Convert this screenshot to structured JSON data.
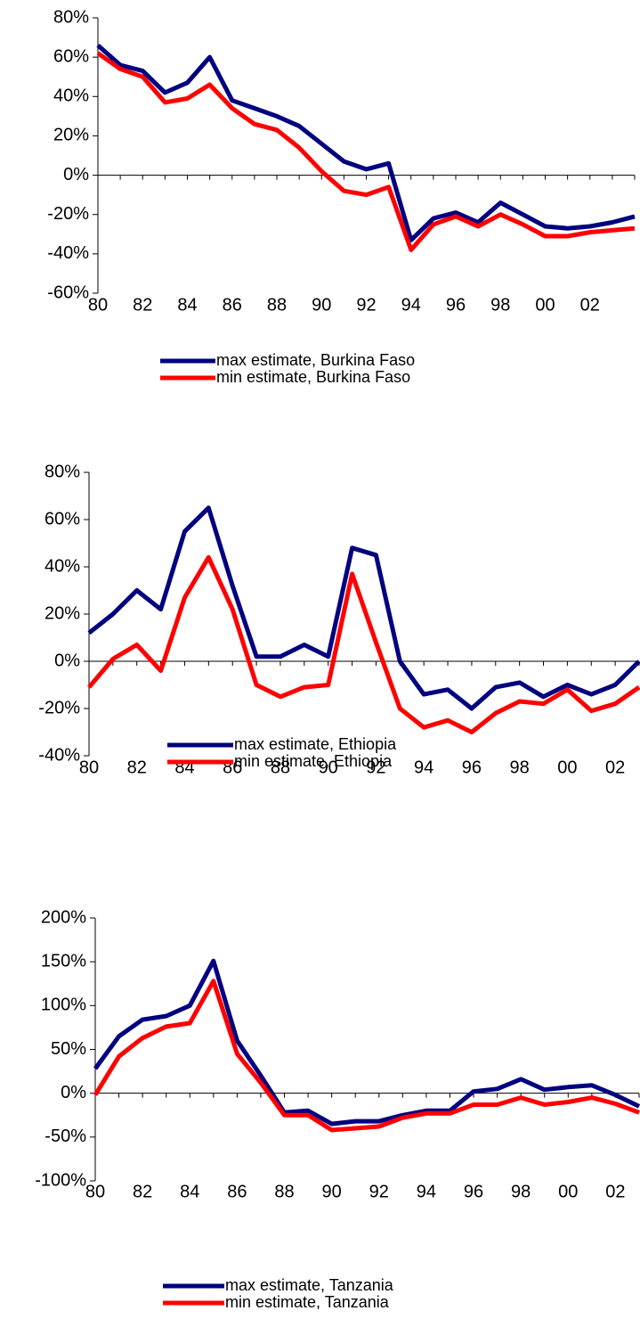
{
  "chart_data": [
    {
      "type": "line",
      "categories": [
        "80",
        null,
        "82",
        null,
        "84",
        null,
        "86",
        null,
        "88",
        null,
        "90",
        null,
        "92",
        null,
        "94",
        null,
        "96",
        null,
        "98",
        null,
        "00",
        null,
        "02",
        null,
        null
      ],
      "series": [
        {
          "name": "max estimate, Burkina Faso",
          "color": "#000080",
          "values": [
            66,
            56,
            53,
            42,
            47,
            60,
            38,
            34,
            30,
            25,
            16,
            7,
            3,
            6,
            -33,
            -22,
            -19,
            -24,
            -14,
            -20,
            -26,
            -27,
            -26,
            -24,
            -21
          ]
        },
        {
          "name": "min estimate, Burkina Faso",
          "color": "#ff0000",
          "values": [
            62,
            54,
            50,
            37,
            39,
            46,
            34,
            26,
            23,
            14,
            2,
            -8,
            -10,
            -6,
            -38,
            -25,
            -21,
            -26,
            -20,
            -25,
            -31,
            -31,
            -29,
            -28,
            -27
          ]
        }
      ],
      "ylim": [
        -60,
        80
      ],
      "yticks": [
        {
          "value": -60,
          "label": "-60%"
        },
        {
          "value": -40,
          "label": "-40%"
        },
        {
          "value": -20,
          "label": "-20%"
        },
        {
          "value": 0,
          "label": "0%"
        },
        {
          "value": 20,
          "label": "20%"
        },
        {
          "value": 40,
          "label": "40%"
        },
        {
          "value": 60,
          "label": "60%"
        },
        {
          "value": 80,
          "label": "80%"
        }
      ]
    },
    {
      "type": "line",
      "categories": [
        "80",
        null,
        "82",
        null,
        "84",
        null,
        "86",
        null,
        "88",
        null,
        "90",
        null,
        "92",
        null,
        "94",
        null,
        "96",
        null,
        "98",
        null,
        "00",
        null,
        "02",
        null
      ],
      "series": [
        {
          "name": "max estimate, Ethiopia",
          "color": "#000080",
          "values": [
            12,
            20,
            30,
            22,
            55,
            65,
            32,
            2,
            2,
            7,
            2,
            48,
            45,
            0,
            -14,
            -12,
            -20,
            -11,
            -9,
            -15,
            -10,
            -14,
            -10,
            0
          ]
        },
        {
          "name": "min estimate, Ethiopia",
          "color": "#ff0000",
          "values": [
            -11,
            1,
            7,
            -4,
            27,
            44,
            22,
            -10,
            -15,
            -11,
            -10,
            37,
            8,
            -20,
            -28,
            -25,
            -30,
            -22,
            -17,
            -18,
            -12,
            -21,
            -18,
            -11
          ]
        }
      ],
      "ylim": [
        -40,
        80
      ],
      "yticks": [
        {
          "value": -40,
          "label": "-40%"
        },
        {
          "value": -20,
          "label": "-20%"
        },
        {
          "value": 0,
          "label": "0%"
        },
        {
          "value": 20,
          "label": "20%"
        },
        {
          "value": 40,
          "label": "40%"
        },
        {
          "value": 60,
          "label": "60%"
        },
        {
          "value": 80,
          "label": "80%"
        }
      ]
    },
    {
      "type": "line",
      "categories": [
        "80",
        null,
        "82",
        null,
        "84",
        null,
        "86",
        null,
        "88",
        null,
        "90",
        null,
        "92",
        null,
        "94",
        null,
        "96",
        null,
        "98",
        null,
        "00",
        null,
        "02",
        null
      ],
      "series": [
        {
          "name": "max estimate, Tanzania",
          "color": "#000080",
          "values": [
            28,
            65,
            84,
            88,
            100,
            151,
            60,
            20,
            -22,
            -20,
            -35,
            -32,
            -32,
            -25,
            -20,
            -20,
            2,
            5,
            16,
            4,
            7,
            9,
            -2,
            -15
          ]
        },
        {
          "name": "min estimate, Tanzania",
          "color": "#ff0000",
          "values": [
            -2,
            42,
            63,
            76,
            80,
            128,
            45,
            12,
            -25,
            -25,
            -42,
            -40,
            -38,
            -28,
            -23,
            -23,
            -13,
            -13,
            -5,
            -13,
            -10,
            -5,
            -12,
            -22
          ]
        }
      ],
      "ylim": [
        -100,
        200
      ],
      "yticks": [
        {
          "value": -100,
          "label": "-100%"
        },
        {
          "value": -50,
          "label": "-50%"
        },
        {
          "value": 0,
          "label": "0%"
        },
        {
          "value": 50,
          "label": "50%"
        },
        {
          "value": 100,
          "label": "100%"
        },
        {
          "value": 150,
          "label": "150%"
        },
        {
          "value": 200,
          "label": "200%"
        }
      ]
    }
  ]
}
